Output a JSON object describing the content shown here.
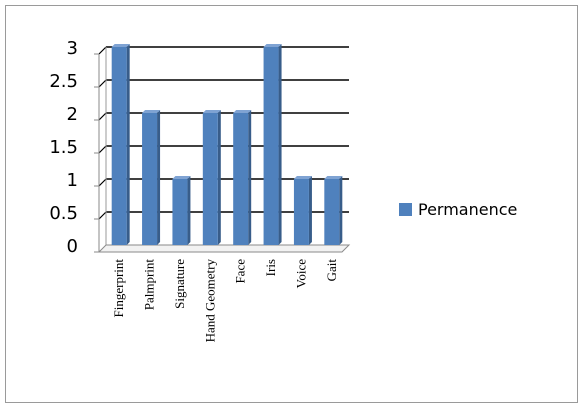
{
  "chart_data": {
    "type": "bar",
    "title": "",
    "xlabel": "",
    "ylabel": "",
    "categories": [
      "Fingerprint",
      "Palmprint",
      "Signature",
      "Hand Geometry",
      "Face",
      "Iris",
      "Voice",
      "Gait"
    ],
    "series": [
      {
        "name": "Permanence",
        "color": "#4f81bd",
        "values": [
          3,
          2,
          1,
          2,
          2,
          3,
          1,
          1
        ]
      }
    ],
    "ylim": [
      0,
      3
    ],
    "yticks": [
      "0",
      "0.5",
      "1",
      "1.5",
      "2",
      "2.5",
      "3"
    ],
    "grid": true,
    "legend_position": "right",
    "style": "3d-column"
  }
}
